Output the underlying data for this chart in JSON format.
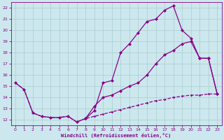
{
  "xlabel": "Windchill (Refroidissement éolien,°C)",
  "bg_color": "#cce8ee",
  "grid_color": "#aacccc",
  "line_color": "#880088",
  "xlim": [
    -0.5,
    23.5
  ],
  "ylim": [
    11.5,
    22.5
  ],
  "xticks": [
    0,
    1,
    2,
    3,
    4,
    5,
    6,
    7,
    8,
    9,
    10,
    11,
    12,
    13,
    14,
    15,
    16,
    17,
    18,
    19,
    20,
    21,
    22,
    23
  ],
  "yticks": [
    12,
    13,
    14,
    15,
    16,
    17,
    18,
    19,
    20,
    21,
    22
  ],
  "line1_x": [
    8,
    9,
    10,
    11,
    12,
    13,
    14,
    15,
    16,
    17,
    18,
    19,
    20,
    21,
    22,
    23
  ],
  "line1_y": [
    12.1,
    12.8,
    15.3,
    15.5,
    18.0,
    18.8,
    19.8,
    20.8,
    21.0,
    21.8,
    22.2,
    20.0,
    19.3,
    17.5,
    17.5,
    14.3
  ],
  "line2_x": [
    0,
    1,
    2,
    3,
    4,
    5,
    6,
    7,
    8,
    9,
    10,
    11,
    12,
    13,
    14,
    15,
    16,
    17,
    18,
    19,
    20,
    21,
    22,
    23
  ],
  "line2_y": [
    15.3,
    14.7,
    12.6,
    12.3,
    12.2,
    12.2,
    12.3,
    11.8,
    12.1,
    13.2,
    14.0,
    14.2,
    14.6,
    15.0,
    15.3,
    16.0,
    17.0,
    17.8,
    18.2,
    18.8,
    19.0,
    17.5,
    17.5,
    14.3
  ],
  "line3_x": [
    0,
    1,
    2,
    3,
    4,
    5,
    6,
    7,
    8,
    9,
    10,
    11,
    12,
    13,
    14,
    15,
    16,
    17,
    18,
    19,
    20,
    21,
    22,
    23
  ],
  "line3_y": [
    15.3,
    14.7,
    12.6,
    12.3,
    12.2,
    12.2,
    12.3,
    11.8,
    12.1,
    12.3,
    12.5,
    12.7,
    12.9,
    13.1,
    13.3,
    13.5,
    13.7,
    13.8,
    14.0,
    14.1,
    14.2,
    14.2,
    14.3,
    14.3
  ]
}
